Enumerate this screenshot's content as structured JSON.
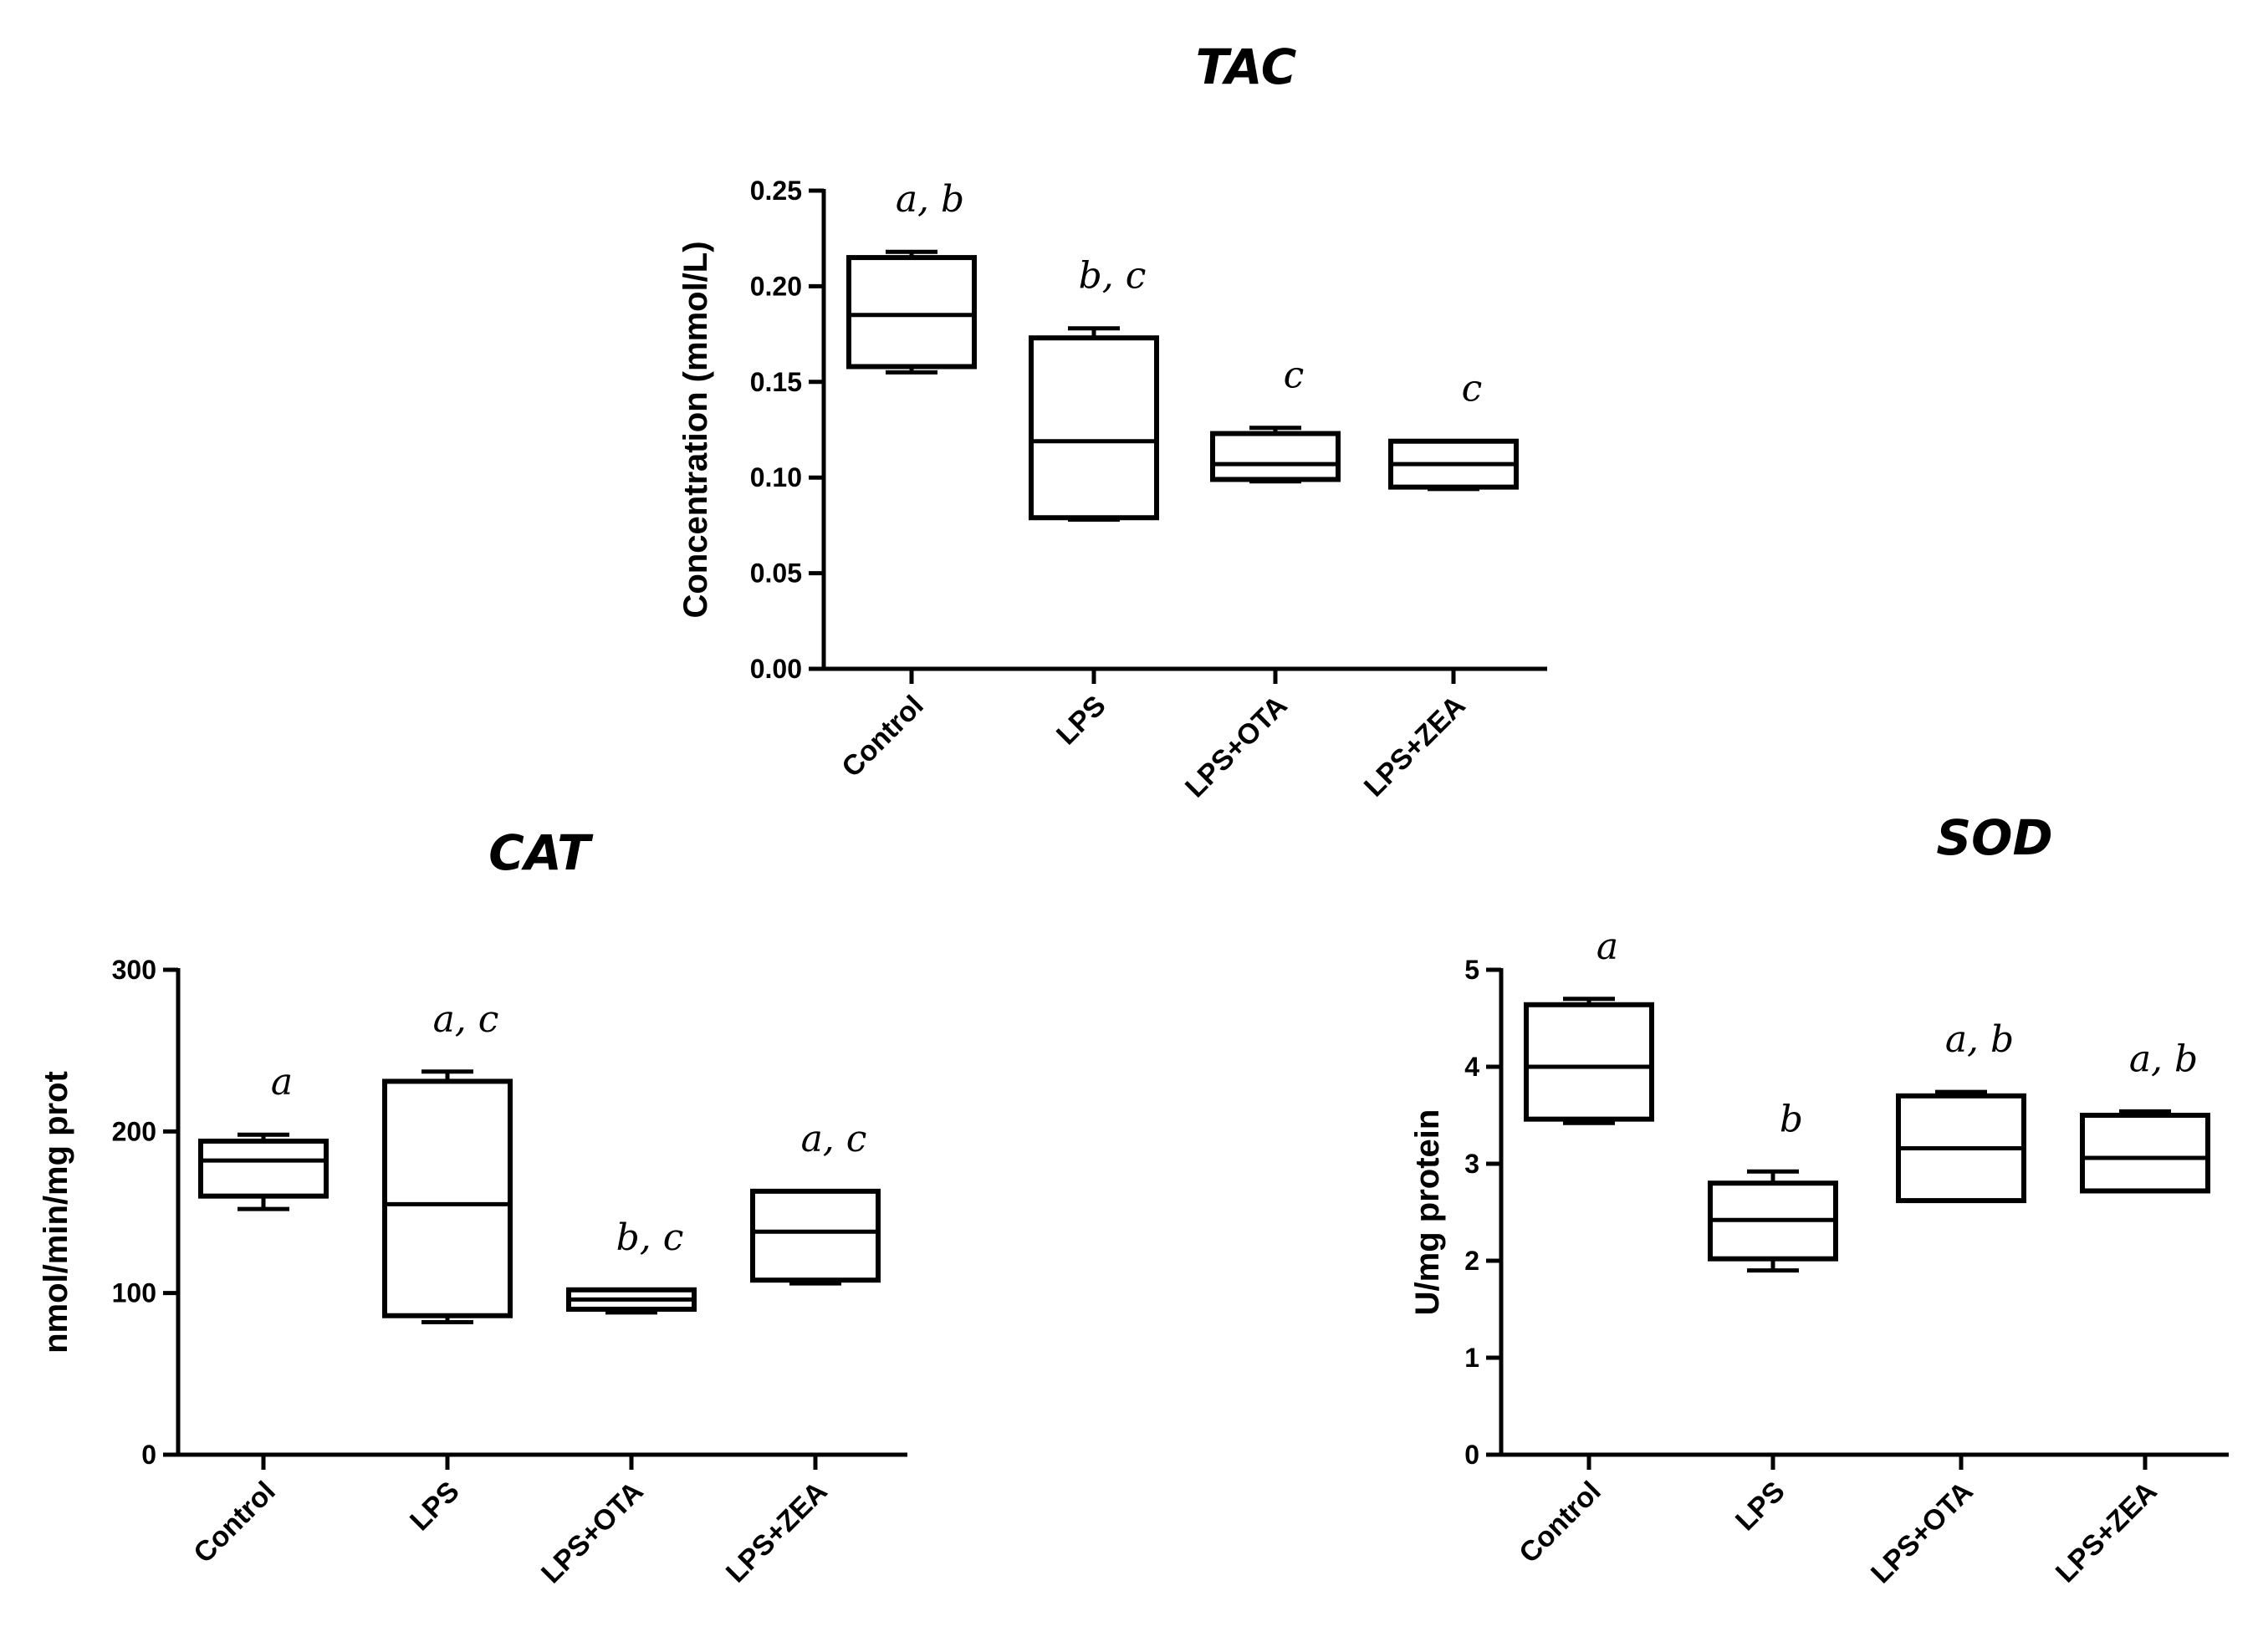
{
  "chart_data": [
    {
      "id": "tac",
      "type": "box",
      "title": "TAC",
      "ylabel": "Concentration (mmol/L)",
      "xlabel": "",
      "ylim": [
        0,
        0.25
      ],
      "yticks": [
        0.0,
        0.05,
        0.1,
        0.15,
        0.2,
        0.25
      ],
      "ytick_labels": [
        "0.00",
        "0.05",
        "0.10",
        "0.15",
        "0.20",
        "0.25"
      ],
      "categories": [
        "Control",
        "LPS",
        "LPS+OTA",
        "LPS+ZEA"
      ],
      "boxes": [
        {
          "min": 0.155,
          "q1": 0.158,
          "median": 0.185,
          "q3": 0.215,
          "max": 0.218
        },
        {
          "min": 0.078,
          "q1": 0.079,
          "median": 0.119,
          "q3": 0.173,
          "max": 0.178
        },
        {
          "min": 0.098,
          "q1": 0.099,
          "median": 0.107,
          "q3": 0.123,
          "max": 0.126
        },
        {
          "min": 0.094,
          "q1": 0.095,
          "median": 0.107,
          "q3": 0.119,
          "max": 0.119
        }
      ],
      "significance": [
        "a, b",
        "b, c",
        "c",
        "c"
      ]
    },
    {
      "id": "cat",
      "type": "box",
      "title": "CAT",
      "ylabel": "nmol/min/mg prot",
      "xlabel": "",
      "ylim": [
        0,
        300
      ],
      "yticks": [
        0,
        100,
        200,
        300
      ],
      "ytick_labels": [
        "0",
        "100",
        "200",
        "300"
      ],
      "categories": [
        "Control",
        "LPS",
        "LPS+OTA",
        "LPS+ZEA"
      ],
      "boxes": [
        {
          "min": 152,
          "q1": 160,
          "median": 182,
          "q3": 194,
          "max": 198
        },
        {
          "min": 82,
          "q1": 86,
          "median": 155,
          "q3": 231,
          "max": 237
        },
        {
          "min": 88,
          "q1": 90,
          "median": 96,
          "q3": 102,
          "max": 102
        },
        {
          "min": 106,
          "q1": 108,
          "median": 138,
          "q3": 163,
          "max": 163
        }
      ],
      "significance": [
        "a",
        "a, c",
        "b, c",
        "a, c"
      ]
    },
    {
      "id": "sod",
      "type": "box",
      "title": "SOD",
      "ylabel": "U/mg protein",
      "xlabel": "",
      "ylim": [
        0,
        5
      ],
      "yticks": [
        0,
        1,
        2,
        3,
        4,
        5
      ],
      "ytick_labels": [
        "0",
        "1",
        "2",
        "3",
        "4",
        "5"
      ],
      "categories": [
        "Control",
        "LPS",
        "LPS+OTA",
        "LPS+ZEA"
      ],
      "boxes": [
        {
          "min": 3.42,
          "q1": 3.46,
          "median": 4.0,
          "q3": 4.64,
          "max": 4.7
        },
        {
          "min": 1.9,
          "q1": 2.02,
          "median": 2.42,
          "q3": 2.8,
          "max": 2.92
        },
        {
          "min": 2.62,
          "q1": 2.62,
          "median": 3.16,
          "q3": 3.7,
          "max": 3.74
        },
        {
          "min": 2.72,
          "q1": 2.72,
          "median": 3.06,
          "q3": 3.5,
          "max": 3.54
        }
      ],
      "significance": [
        "a",
        "b",
        "a, b",
        "a, b"
      ]
    }
  ]
}
